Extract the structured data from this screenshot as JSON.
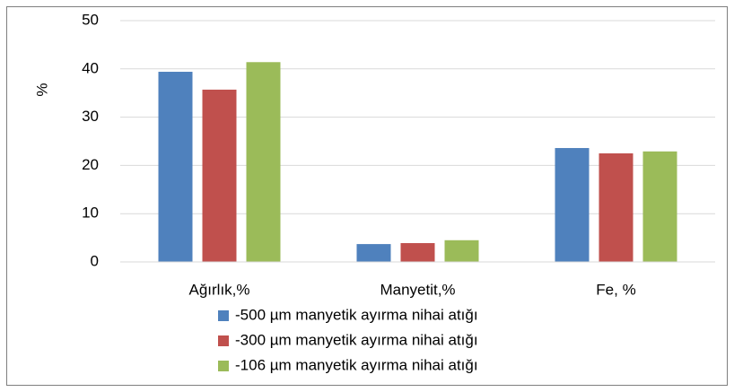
{
  "chart_data": {
    "type": "bar",
    "y_label": "%",
    "categories": [
      "Ağırlık,%",
      "Manyetit,%",
      "Fe, %"
    ],
    "series": [
      {
        "name": "-500 µm manyetik ayırma nihai atığı",
        "color": "#4f81bd",
        "values": [
          39.4,
          3.7,
          23.6
        ]
      },
      {
        "name": "-300 µm manyetik ayırma nihai atığı",
        "color": "#c0504d",
        "values": [
          35.7,
          3.9,
          22.5
        ]
      },
      {
        "name": "-106 µm manyetik ayırma nihai atığı",
        "color": "#9bbb59",
        "values": [
          41.4,
          4.5,
          22.9
        ]
      }
    ],
    "ylim": [
      0,
      50
    ],
    "yticks": [
      0,
      10,
      20,
      30,
      40,
      50
    ],
    "grid": true,
    "legend": "bottom"
  }
}
